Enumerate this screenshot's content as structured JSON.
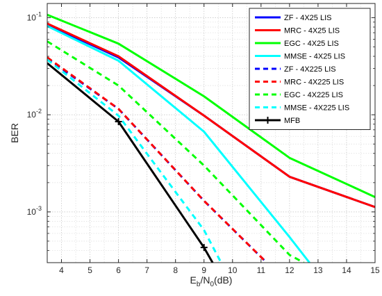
{
  "chart_data": {
    "type": "line",
    "title": "",
    "xlabel": "E_b/N_0(dB)",
    "ylabel": "BER",
    "xlim": [
      3.5,
      15
    ],
    "ylim": [
      0.0003,
      0.14
    ],
    "yscale": "log",
    "grid": true,
    "minor_grid": true,
    "legend_position": "top-right",
    "x_ticks": [
      "4",
      "5",
      "6",
      "7",
      "8",
      "9",
      "10",
      "11",
      "12",
      "13",
      "14",
      "15"
    ],
    "y_ticks": [
      {
        "value": 0.001,
        "base": "10",
        "exp": "-3"
      },
      {
        "value": 0.01,
        "base": "10",
        "exp": "-2"
      },
      {
        "value": 0.1,
        "base": "10",
        "exp": "-1"
      }
    ],
    "series": [
      {
        "name": "ZF - 4X25 LIS",
        "color": "#0000ff",
        "dash": "solid",
        "marker": "none",
        "x": [
          3.5,
          6,
          9,
          12,
          15
        ],
        "y": [
          0.085,
          0.039,
          0.0098,
          0.0023,
          0.00112
        ]
      },
      {
        "name": "MRC - 4X25 LIS",
        "color": "#ff0000",
        "dash": "solid",
        "marker": "none",
        "x": [
          3.5,
          6,
          9,
          12,
          15
        ],
        "y": [
          0.087,
          0.04,
          0.0098,
          0.0023,
          0.00112
        ]
      },
      {
        "name": "EGC - 4X25 LIS",
        "color": "#00ff00",
        "dash": "solid",
        "marker": "none",
        "x": [
          3.5,
          6,
          9,
          12,
          15
        ],
        "y": [
          0.107,
          0.054,
          0.0155,
          0.0036,
          0.00142
        ]
      },
      {
        "name": "MMSE - 4X25 LIS",
        "color": "#00ffff",
        "dash": "solid",
        "marker": "none",
        "x": [
          3.5,
          6,
          9,
          12,
          12.7
        ],
        "y": [
          0.082,
          0.036,
          0.0067,
          0.00055,
          0.0003
        ]
      },
      {
        "name": "ZF - 4X225 LIS",
        "color": "#0000ff",
        "dash": "dashed",
        "marker": "none",
        "x": [
          3.5,
          6,
          9,
          11.2
        ],
        "y": [
          0.038,
          0.0115,
          0.0013,
          0.0003
        ]
      },
      {
        "name": "MRC - 4X225 LIS",
        "color": "#ff0000",
        "dash": "dashed",
        "marker": "none",
        "x": [
          3.5,
          6,
          9,
          11.2
        ],
        "y": [
          0.039,
          0.0115,
          0.0013,
          0.0003
        ]
      },
      {
        "name": "EGC - 4X225 LIS",
        "color": "#00ff00",
        "dash": "dashed",
        "marker": "none",
        "x": [
          3.5,
          6,
          9,
          12,
          12.5
        ],
        "y": [
          0.057,
          0.02,
          0.003,
          0.00036,
          0.0003
        ]
      },
      {
        "name": "MMSE - 4X225 LIS",
        "color": "#00ffff",
        "dash": "dashed",
        "marker": "none",
        "x": [
          3.5,
          6,
          9,
          9.6
        ],
        "y": [
          0.037,
          0.0098,
          0.00065,
          0.0003
        ]
      },
      {
        "name": "MFB",
        "color": "#000000",
        "dash": "solid",
        "marker": "plus",
        "x": [
          3.5,
          6,
          9,
          9.3
        ],
        "y": [
          0.034,
          0.0085,
          0.00043,
          0.0003
        ]
      }
    ]
  }
}
